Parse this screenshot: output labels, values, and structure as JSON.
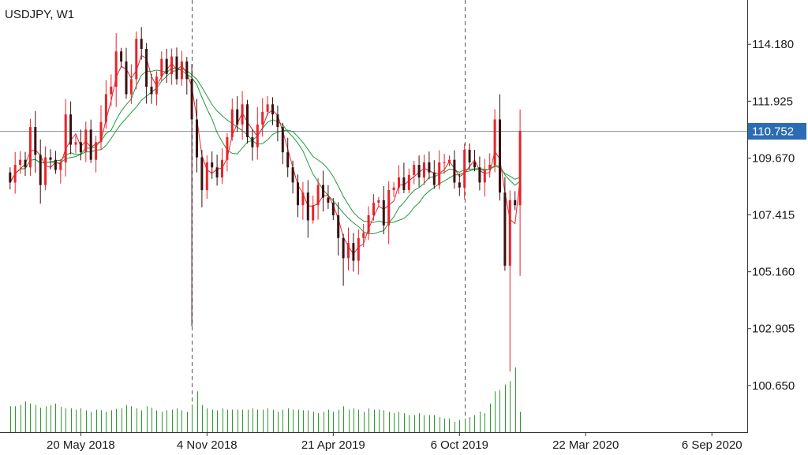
{
  "chart_data": {
    "type": "candlestick",
    "title": "USDJPY, W1",
    "y_ticks": [
      "114.180",
      "111.925",
      "109.670",
      "107.415",
      "105.160",
      "102.905",
      "100.650"
    ],
    "y_tick_values": [
      114.18,
      111.925,
      109.67,
      107.415,
      105.16,
      102.905,
      100.65
    ],
    "ylim": [
      98.8,
      115.75
    ],
    "x_ticks": [
      "20 May 2018",
      "4 Nov 2018",
      "21 Apr 2019",
      "6 Oct 2019",
      "22 Mar 2020",
      "6 Sep 2020"
    ],
    "x_tick_index": [
      14,
      39,
      64,
      89,
      114,
      139
    ],
    "x_range": [
      -2,
      146
    ],
    "period_separators": [
      36,
      90
    ],
    "current_price": "110.752",
    "current_price_value": 110.752,
    "grid": false,
    "colors": {
      "bull": "#e8232a",
      "bear": "#3a1111",
      "ma_fast": "#e8232a",
      "ma_slow": "#1f9a3f",
      "volume": "#2d9a2d",
      "price_label_bg": "#2c6cb5",
      "axis": "#333333",
      "price_line": "#8e9aa4"
    },
    "closes": [
      108.7,
      109.4,
      109.6,
      109.3,
      110.9,
      109.8,
      108.6,
      109.7,
      109.6,
      109.2,
      109.5,
      111.4,
      110.2,
      110.3,
      109.9,
      110.8,
      109.6,
      110.3,
      111.1,
      112.2,
      112.5,
      113.9,
      113.5,
      112.2,
      112.8,
      114.4,
      114.0,
      112.5,
      112.2,
      112.9,
      113.6,
      113.0,
      113.7,
      112.8,
      113.5,
      112.8,
      111.2,
      109.7,
      108.4,
      109.5,
      109.3,
      108.9,
      109.6,
      110.5,
      111.6,
      111.0,
      111.8,
      110.5,
      110.1,
      111.0,
      111.5,
      111.8,
      111.4,
      110.9,
      109.9,
      109.3,
      108.7,
      107.8,
      108.3,
      107.2,
      107.8,
      108.6,
      108.1,
      107.9,
      107.4,
      106.5,
      105.7,
      106.3,
      105.6,
      106.5,
      106.7,
      107.4,
      107.9,
      108.0,
      107.0,
      108.4,
      108.5,
      108.9,
      108.4,
      109.0,
      109.4,
      108.9,
      109.5,
      109.1,
      108.6,
      109.5,
      109.5,
      109.6,
      108.7,
      108.5,
      110.0,
      109.5,
      109.3,
      108.7,
      109.2,
      109.4,
      111.2,
      108.3,
      105.4,
      108.0,
      107.8,
      110.752
    ],
    "volumes": [
      38,
      38,
      40,
      45,
      42,
      40,
      36,
      38,
      40,
      42,
      37,
      35,
      35,
      33,
      35,
      32,
      30,
      33,
      32,
      30,
      32,
      34,
      35,
      40,
      38,
      35,
      32,
      38,
      36,
      32,
      30,
      32,
      33,
      35,
      32,
      30,
      40,
      60,
      40,
      35,
      33,
      32,
      35,
      33,
      33,
      33,
      33,
      33,
      35,
      33,
      33,
      35,
      33,
      30,
      33,
      35,
      33,
      33,
      32,
      32,
      30,
      28,
      30,
      33,
      30,
      33,
      38,
      33,
      35,
      33,
      30,
      35,
      33,
      33,
      32,
      30,
      28,
      30,
      28,
      25,
      25,
      28,
      25,
      25,
      25,
      22,
      20,
      20,
      15,
      18,
      20,
      22,
      25,
      30,
      28,
      42,
      60,
      62,
      70,
      75,
      95,
      30
    ]
  }
}
